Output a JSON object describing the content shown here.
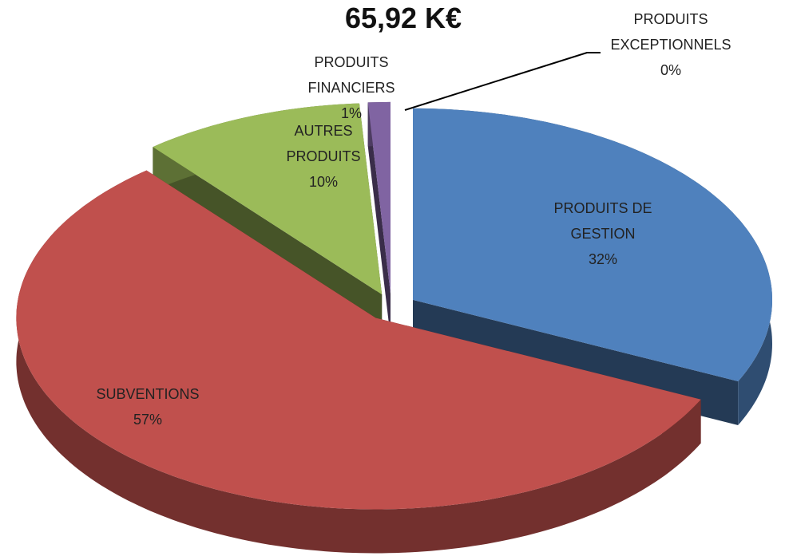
{
  "chart_data": {
    "type": "pie",
    "title": "65,92 K€",
    "categories": [
      "PRODUITS DE GESTION",
      "SUBVENTIONS",
      "AUTRES PRODUITS",
      "PRODUITS FINANCIERS",
      "PRODUITS EXCEPTIONNELS"
    ],
    "values": [
      32,
      57,
      10,
      1,
      0
    ],
    "value_labels": [
      "32%",
      "57%",
      "10%",
      "1%",
      "0%"
    ],
    "colors": [
      "#4f81bd",
      "#c0504d",
      "#9bbb59",
      "#8064a2",
      "#4bacc6"
    ]
  }
}
